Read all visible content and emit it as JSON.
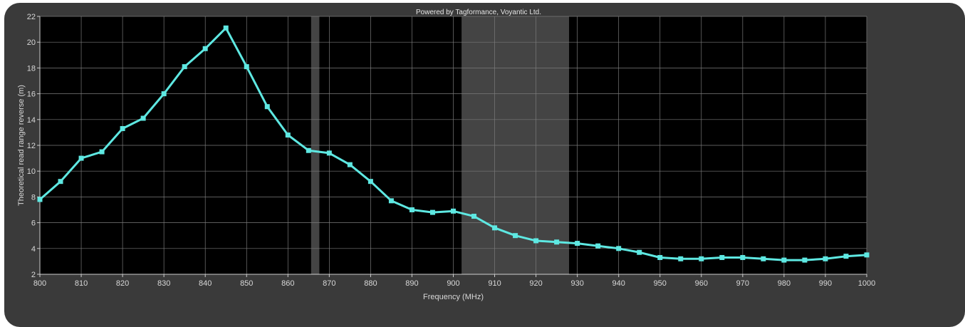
{
  "chart_data": {
    "type": "line",
    "credit": "Powered by Tagformance, Voyantic Ltd.",
    "xlabel": "Frequency (MHz)",
    "ylabel": "Theoretical read range reverse (m)",
    "xlim": [
      800,
      1000
    ],
    "ylim": [
      2,
      22
    ],
    "xticks": [
      800,
      810,
      820,
      830,
      840,
      850,
      860,
      870,
      880,
      890,
      900,
      910,
      920,
      930,
      940,
      950,
      960,
      970,
      980,
      990,
      1000
    ],
    "yticks": [
      2,
      4,
      6,
      8,
      10,
      12,
      14,
      16,
      18,
      20,
      22
    ],
    "grid": true,
    "shaded_bands": [
      {
        "from": 865.6,
        "to": 867.6
      },
      {
        "from": 902,
        "to": 928
      }
    ],
    "series": [
      {
        "color": "#5ee8e2",
        "x": [
          800,
          805,
          810,
          815,
          820,
          825,
          830,
          835,
          840,
          845,
          850,
          855,
          860,
          865,
          870,
          875,
          880,
          885,
          890,
          895,
          900,
          905,
          910,
          915,
          920,
          925,
          930,
          935,
          940,
          945,
          950,
          955,
          960,
          965,
          970,
          975,
          980,
          985,
          990,
          995,
          1000
        ],
        "y": [
          7.8,
          9.2,
          11.0,
          11.5,
          13.3,
          14.1,
          16.0,
          18.1,
          19.5,
          21.1,
          18.1,
          15.0,
          12.8,
          11.6,
          11.4,
          10.5,
          9.2,
          7.7,
          7.0,
          6.8,
          6.9,
          6.5,
          5.6,
          5.0,
          4.6,
          4.5,
          4.4,
          4.2,
          4.0,
          3.7,
          3.3,
          3.2,
          3.2,
          3.3,
          3.3,
          3.2,
          3.1,
          3.1,
          3.2,
          3.4,
          3.5
        ]
      }
    ]
  }
}
